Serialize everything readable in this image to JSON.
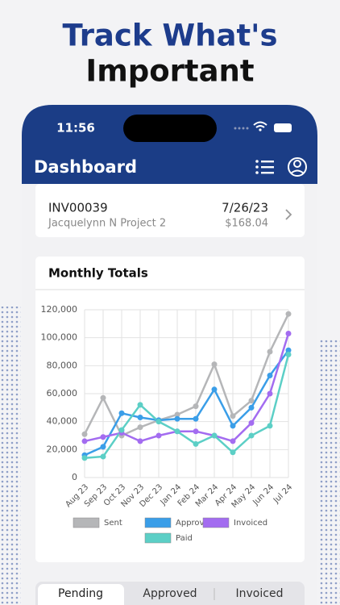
{
  "heading": {
    "line1": "Track What's",
    "line2": "Important"
  },
  "status_bar": {
    "time": "11:56"
  },
  "app_bar": {
    "title": "Dashboard"
  },
  "invoice": {
    "number": "INV00039",
    "project": "Jacquelynn N Project 2",
    "date": "7/26/23",
    "amount": "$168.04"
  },
  "chart_data": {
    "type": "line",
    "title": "Monthly Totals",
    "categories": [
      "Aug 23",
      "Sep 23",
      "Oct 23",
      "Nov 23",
      "Dec 23",
      "Jan 24",
      "Feb 24",
      "Mar 24",
      "Apr 24",
      "May 24",
      "Jun 24",
      "Jul 24"
    ],
    "series": [
      {
        "name": "Sent",
        "color": "#b5b6b8",
        "values": [
          31000,
          57000,
          30000,
          36000,
          41000,
          45000,
          51000,
          81000,
          44000,
          55000,
          90000,
          117000
        ]
      },
      {
        "name": "Approved",
        "color": "#3a9ee8",
        "values": [
          16000,
          22000,
          46000,
          43000,
          41000,
          42000,
          42000,
          63000,
          37000,
          50000,
          73000,
          91000
        ]
      },
      {
        "name": "Invoiced",
        "color": "#a36cf0",
        "values": [
          26000,
          29000,
          32000,
          26000,
          30000,
          33000,
          33000,
          30000,
          26000,
          39000,
          60000,
          103000
        ]
      },
      {
        "name": "Paid",
        "color": "#5ccfc6",
        "values": [
          14000,
          15000,
          34000,
          52000,
          40000,
          33000,
          24000,
          30000,
          18000,
          30000,
          37000,
          88000
        ]
      }
    ],
    "ylim": [
      0,
      120000
    ],
    "yticks": [
      0,
      {
        "value": 20000,
        "label": "20,000"
      },
      {
        "value": 40000,
        "label": "40,000"
      },
      {
        "value": 60000,
        "label": "60,000"
      },
      {
        "value": 80000,
        "label": "80,000"
      },
      {
        "value": 100000,
        "label": "100,000"
      },
      {
        "value": 120000,
        "label": "120,000"
      }
    ],
    "grid": true,
    "legend": "bottom"
  },
  "tabs": [
    "Pending",
    "Approved",
    "Invoiced"
  ]
}
